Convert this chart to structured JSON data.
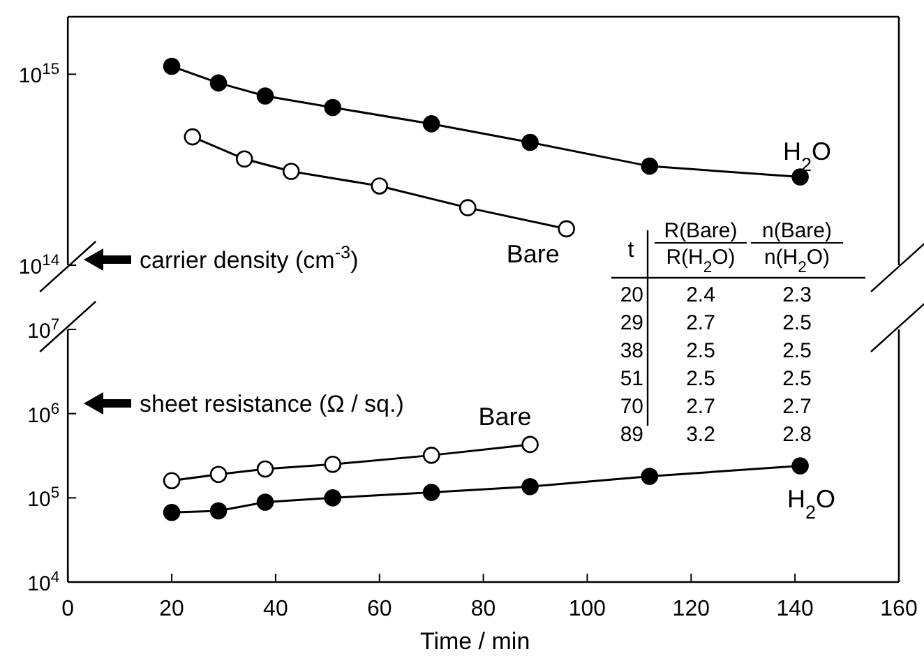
{
  "chart_data": [
    {
      "type": "line",
      "ylabel": "carrier density (cm$^{-3}$)",
      "xlim": [
        0,
        160
      ],
      "ylim": [
        100000000000000.0,
        2000000000000000.0
      ],
      "log": "y",
      "yticks": [
        {
          "value": 100000000000000.0,
          "label": "10$^{14}$"
        },
        {
          "value": 1000000000000000.0,
          "label": "10$^{15}$"
        }
      ],
      "tick_labels": "y",
      "marker": "circle",
      "line_style": "solid",
      "grid": false,
      "series": [
        {
          "name": "H$_{2}$O",
          "color": "#000000",
          "x": [
            20,
            29,
            38,
            51,
            70,
            89,
            112,
            141
          ],
          "values": [
            1100000000000000.0,
            900000000000000.0,
            770000000000000.0,
            670000000000000.0,
            550000000000000.0,
            440000000000000.0,
            330000000000000.0,
            290000000000000.0
          ]
        },
        {
          "name": "Bare",
          "color": "#ffffff",
          "x": [
            24,
            34,
            43,
            60,
            77,
            96
          ],
          "values": [
            470000000000000.0,
            360000000000000.0,
            310000000000000.0,
            260000000000000.0,
            200000000000000.0,
            155000000000000.0
          ]
        }
      ],
      "annotations": [
        "t",
        "R(Bare)",
        "R(H$_{2}$O)",
        "n(Bare)",
        "n(H$_{2}$O)",
        "20",
        "2.4",
        "2.3",
        "29",
        "2.7",
        "2.5",
        "38",
        "2.5",
        "2.5",
        "51",
        "2.5",
        "2.5",
        "70",
        "2.7",
        "2.7",
        "89",
        "3.2",
        "2.8"
      ]
    },
    {
      "type": "line",
      "xlabel": "Time / min",
      "ylabel": "sheet resistance (Ω / sq.)",
      "xlim": [
        0,
        160
      ],
      "xticks": [
        0,
        20,
        40,
        60,
        80,
        100,
        120,
        140,
        160
      ],
      "ylim": [
        10000.0,
        10000000.0
      ],
      "log": "y",
      "yticks": [
        {
          "value": 10000.0,
          "label": "10$^{4}$"
        },
        {
          "value": 100000.0,
          "label": "10$^{5}$"
        },
        {
          "value": 1000000.0,
          "label": "10$^{6}$"
        },
        {
          "value": 10000000.0,
          "label": "10$^{7}$"
        }
      ],
      "marker": "circle",
      "line_style": "solid",
      "grid": false,
      "series": [
        {
          "name": "H$_{2}$O",
          "color": "#000000",
          "x": [
            20,
            29,
            38,
            51,
            70,
            89,
            112,
            141
          ],
          "values": [
            67000.0,
            70000.0,
            89000.0,
            100000.0,
            116000.0,
            136000.0,
            180000.0,
            240000.0
          ]
        },
        {
          "name": "Bare",
          "color": "#ffffff",
          "x": [
            20,
            29,
            38,
            51,
            70,
            89
          ],
          "values": [
            160000.0,
            190000.0,
            220000.0,
            250000.0,
            320000.0,
            430000.0
          ]
        }
      ]
    }
  ]
}
